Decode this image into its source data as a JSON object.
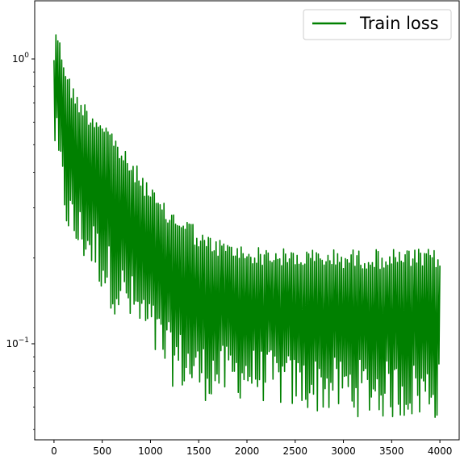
{
  "chart_data": {
    "type": "line",
    "title": "",
    "xlabel": "",
    "ylabel": "",
    "xlim": [
      -200,
      4200
    ],
    "ylim": [
      0.046,
      1.6
    ],
    "yscale": "log",
    "grid": false,
    "legend_position": "top-right",
    "x_ticks": [
      0,
      500,
      1000,
      1500,
      2000,
      2500,
      3000,
      3500,
      4000
    ],
    "x_tick_labels": [
      "0",
      "500",
      "1000",
      "1500",
      "2000",
      "2500",
      "3000",
      "3500",
      "4000"
    ],
    "y_major_ticks": [
      0.1,
      1
    ],
    "y_major_tick_labels": [
      {
        "base": "10",
        "exp": "−1"
      },
      {
        "base": "10",
        "exp": "0"
      }
    ],
    "y_minor_ticks": [
      0.05,
      0.06,
      0.07,
      0.08,
      0.09,
      0.2,
      0.3,
      0.4,
      0.5,
      0.6,
      0.7,
      0.8,
      0.9
    ],
    "series": [
      {
        "name": "Train loss",
        "color": "#008000",
        "x_start": 0,
        "x_end": 4000,
        "x_step": 10,
        "upper_envelope": {
          "x": [
            0,
            25,
            50,
            100,
            150,
            200,
            300,
            400,
            500,
            600,
            700,
            800,
            900,
            1000,
            1100,
            1200,
            1300,
            1400,
            1500,
            1600,
            1700,
            1800,
            1900,
            2000,
            2500,
            3000,
            3500,
            4000
          ],
          "y": [
            1.05,
            1.4,
            1.2,
            1.05,
            0.9,
            0.8,
            0.72,
            0.66,
            0.64,
            0.57,
            0.5,
            0.44,
            0.41,
            0.36,
            0.32,
            0.3,
            0.29,
            0.28,
            0.25,
            0.24,
            0.235,
            0.23,
            0.225,
            0.22,
            0.215,
            0.215,
            0.215,
            0.215
          ]
        },
        "lower_envelope": {
          "x": [
            0,
            50,
            100,
            200,
            300,
            400,
            500,
            600,
            700,
            800,
            900,
            1000,
            1100,
            1200,
            1300,
            1400,
            1500,
            1600,
            1800,
            2000,
            2200,
            2500,
            3000,
            3500,
            4000
          ],
          "y": [
            0.5,
            0.36,
            0.27,
            0.2,
            0.19,
            0.175,
            0.15,
            0.13,
            0.12,
            0.11,
            0.1,
            0.09,
            0.08,
            0.072,
            0.068,
            0.065,
            0.063,
            0.063,
            0.063,
            0.064,
            0.062,
            0.058,
            0.056,
            0.054,
            0.054
          ]
        }
      }
    ]
  }
}
